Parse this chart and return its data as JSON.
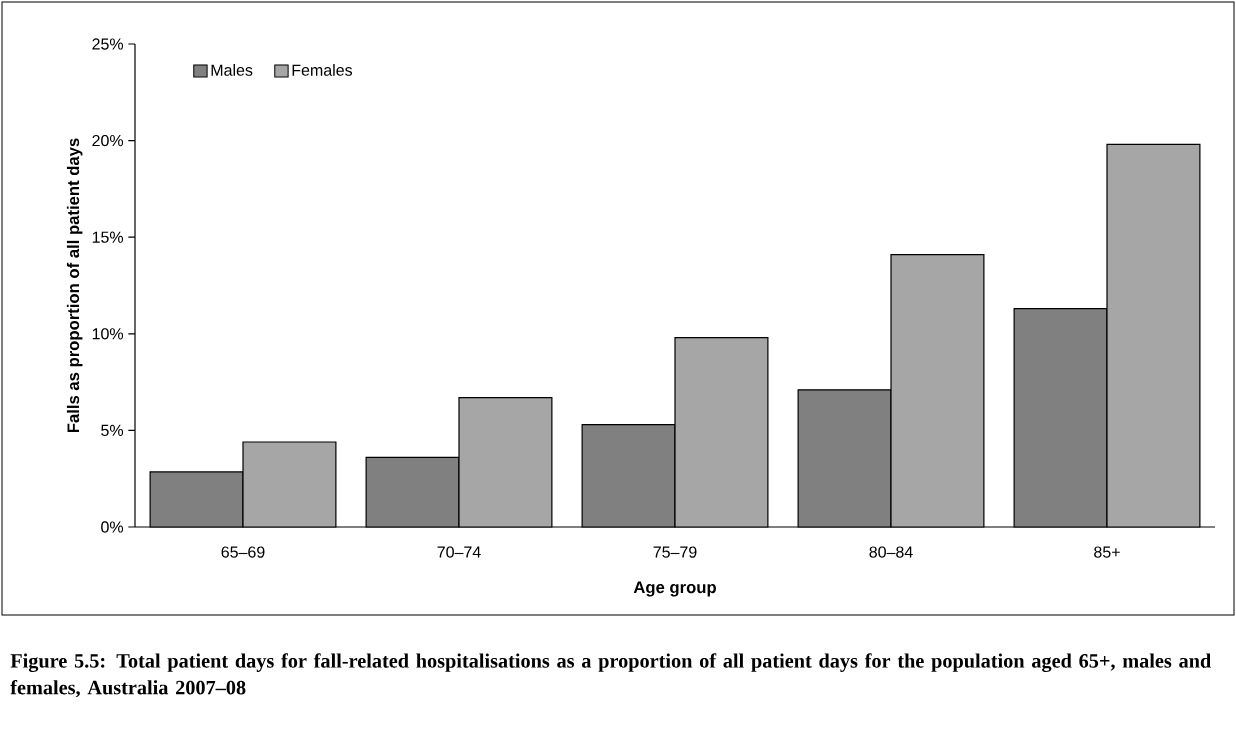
{
  "chart_data": {
    "type": "bar",
    "categories": [
      "65–69",
      "70–74",
      "75–79",
      "80–84",
      "85+"
    ],
    "series": [
      {
        "name": "Males",
        "color": "#808080",
        "values": [
          2.85,
          3.6,
          5.3,
          7.1,
          11.3
        ]
      },
      {
        "name": "Females",
        "color": "#a6a6a6",
        "values": [
          4.4,
          6.7,
          9.8,
          14.1,
          19.8
        ]
      }
    ],
    "xlabel": "Age group",
    "ylabel": "Falls as proportion of all patient days",
    "ylim": [
      0,
      25
    ],
    "yticks": [
      {
        "value": 0,
        "label": "0%"
      },
      {
        "value": 5,
        "label": "5%"
      },
      {
        "value": 10,
        "label": "10%"
      },
      {
        "value": 15,
        "label": "15%"
      },
      {
        "value": 20,
        "label": "20%"
      },
      {
        "value": 25,
        "label": "25%"
      }
    ],
    "legend": "top left",
    "annotations": [
      "**Figure 5.5: Total patient days for fall-related hospitalisations as a proportion of all patient days for the population aged 65+, males and females, Australia 2007–08**"
    ]
  }
}
